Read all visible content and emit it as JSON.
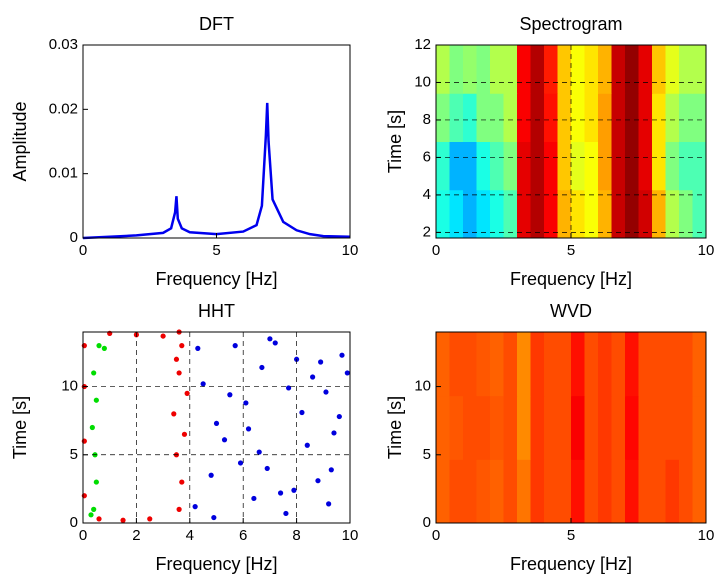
{
  "chart_data": [
    {
      "type": "line",
      "title": "DFT",
      "x_label": "Frequency [Hz]",
      "y_label": "Amplitude",
      "color": "#0000ee",
      "grid": false,
      "x": [
        0,
        1,
        2,
        3,
        3.3,
        3.45,
        3.5,
        3.55,
        3.7,
        4,
        5,
        6,
        6.5,
        6.7,
        6.85,
        6.9,
        6.95,
        7.1,
        7.5,
        8,
        8.5,
        9,
        10
      ],
      "values": [
        0,
        0.0002,
        0.0004,
        0.0008,
        0.0015,
        0.004,
        0.0065,
        0.003,
        0.0015,
        0.0009,
        0.0006,
        0.001,
        0.002,
        0.005,
        0.016,
        0.021,
        0.015,
        0.006,
        0.0025,
        0.0012,
        0.0006,
        0.0003,
        0.0002
      ],
      "xlim": [
        0,
        10
      ],
      "ylim": [
        0,
        0.03
      ],
      "xticks": [
        0,
        5,
        10
      ],
      "yticks": [
        0,
        0.01,
        0.02,
        0.03
      ]
    },
    {
      "type": "heatmap",
      "title": "Spectrogram",
      "x_label": "Frequency [Hz]",
      "y_label": "Time [s]",
      "grid": true,
      "clim": [
        0,
        1
      ],
      "xlim": [
        0,
        10
      ],
      "ylim": [
        1.7,
        12
      ],
      "xticks": [
        0,
        5,
        10
      ],
      "yticks": [
        2,
        4,
        6,
        8,
        10,
        12
      ],
      "values": [
        [
          0.4,
          0.35,
          0.3,
          0.35,
          0.4,
          0.45,
          0.9,
          0.95,
          0.88,
          0.7,
          0.65,
          0.62,
          0.7,
          0.93,
          0.98,
          0.92,
          0.7,
          0.55,
          0.5,
          0.45
        ],
        [
          0.42,
          0.3,
          0.3,
          0.4,
          0.45,
          0.5,
          0.9,
          0.95,
          0.88,
          0.68,
          0.6,
          0.62,
          0.72,
          0.93,
          0.98,
          0.9,
          0.65,
          0.5,
          0.45,
          0.45
        ],
        [
          0.5,
          0.45,
          0.42,
          0.5,
          0.5,
          0.55,
          0.88,
          0.95,
          0.86,
          0.68,
          0.62,
          0.65,
          0.72,
          0.93,
          0.98,
          0.9,
          0.65,
          0.55,
          0.5,
          0.5
        ],
        [
          0.55,
          0.5,
          0.52,
          0.5,
          0.55,
          0.55,
          0.88,
          0.95,
          0.85,
          0.68,
          0.62,
          0.65,
          0.7,
          0.93,
          0.98,
          0.9,
          0.68,
          0.6,
          0.55,
          0.55
        ]
      ]
    },
    {
      "type": "scatter",
      "title": "HHT",
      "x_label": "Frequency [Hz]",
      "y_label": "Time [s]",
      "grid": true,
      "xlim": [
        0,
        10
      ],
      "ylim": [
        0,
        14
      ],
      "xticks": [
        0,
        2,
        4,
        6,
        8,
        10
      ],
      "yticks": [
        0,
        5,
        10
      ],
      "series": [
        {
          "color": "#0000dd",
          "x": [
            4.2,
            4.8,
            5.3,
            6.1,
            6.7,
            7.2,
            7.9,
            8.4,
            9.1,
            9.7,
            4.5,
            5.0,
            5.9,
            6.4,
            7.0,
            7.6,
            8.2,
            8.8,
            9.4,
            9.9,
            4.3,
            5.5,
            6.2,
            6.9,
            7.4,
            8.0,
            8.6,
            9.2,
            9.6,
            4.9,
            5.7,
            6.6,
            7.7,
            8.9,
            9.3
          ],
          "values": [
            1.2,
            3.5,
            6.1,
            8.8,
            11.4,
            13.2,
            2.4,
            5.7,
            9.6,
            12.3,
            10.2,
            7.3,
            4.4,
            1.8,
            13.5,
            0.7,
            8.1,
            3.1,
            6.6,
            11.0,
            12.8,
            9.4,
            6.9,
            4.0,
            2.2,
            12.0,
            10.7,
            1.4,
            7.8,
            0.4,
            13.0,
            5.2,
            9.9,
            11.8,
            3.9
          ]
        },
        {
          "color": "#ee0000",
          "x": [
            3.6,
            3.7,
            3.5,
            3.8,
            3.4,
            3.9,
            3.6,
            3.5,
            3.7,
            3.6,
            0.05,
            0.05,
            0.05,
            0.05,
            1.0,
            2.0,
            3.0,
            0.6,
            1.5,
            2.5
          ],
          "values": [
            1,
            3,
            5,
            6.5,
            8,
            9.5,
            11,
            12,
            13,
            14,
            2,
            6,
            10,
            13,
            13.9,
            13.8,
            13.7,
            0.3,
            0.2,
            0.3
          ]
        },
        {
          "color": "#00dd00",
          "x": [
            0.4,
            0.5,
            0.45,
            0.35,
            0.5,
            0.4,
            0.6,
            0.8,
            0.3
          ],
          "values": [
            1,
            3,
            5,
            7,
            9,
            11,
            13,
            12.8,
            0.6
          ]
        }
      ]
    },
    {
      "type": "heatmap",
      "title": "WVD",
      "x_label": "Frequency [Hz]",
      "y_label": "Time [s]",
      "grid": false,
      "clim": [
        0,
        1
      ],
      "xlim": [
        0,
        10
      ],
      "ylim": [
        0,
        14
      ],
      "xticks": [
        0,
        5,
        10
      ],
      "yticks": [
        0,
        5,
        10
      ],
      "values": [
        [
          0.78,
          0.8,
          0.8,
          0.79,
          0.78,
          0.8,
          0.76,
          0.82,
          0.8,
          0.8,
          0.86,
          0.8,
          0.82,
          0.8,
          0.86,
          0.8,
          0.8,
          0.82,
          0.8,
          0.78
        ],
        [
          0.78,
          0.79,
          0.8,
          0.8,
          0.79,
          0.8,
          0.74,
          0.82,
          0.8,
          0.8,
          0.88,
          0.8,
          0.82,
          0.8,
          0.87,
          0.8,
          0.8,
          0.8,
          0.8,
          0.78
        ],
        [
          0.78,
          0.8,
          0.8,
          0.79,
          0.78,
          0.8,
          0.74,
          0.82,
          0.8,
          0.8,
          0.86,
          0.8,
          0.82,
          0.8,
          0.86,
          0.8,
          0.8,
          0.8,
          0.8,
          0.78
        ]
      ]
    }
  ]
}
